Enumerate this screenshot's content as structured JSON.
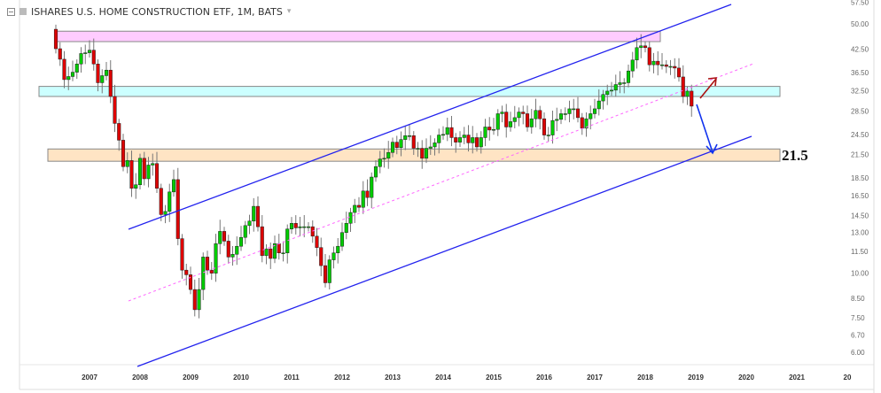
{
  "header": {
    "title": "ISHARES U.S. HOME CONSTRUCTION ETF, 1M, BATS",
    "caret": "▾"
  },
  "chart_data": {
    "type": "candlestick",
    "title": "ISHARES U.S. HOME CONSTRUCTION ETF, 1M, BATS",
    "interval": "1M",
    "start_month": "2006-05",
    "first_open": 48.3,
    "closes": [
      42.6,
      39.8,
      34.9,
      35.6,
      36.6,
      38.6,
      41.3,
      41.5,
      42.2,
      38.6,
      34.2,
      35.8,
      37.1,
      31.3,
      26.3,
      23.6,
      19.9,
      20.7,
      17.3,
      17.7,
      21.0,
      18.4,
      20.1,
      20.3,
      17.3,
      14.6,
      14.9,
      16.9,
      18.3,
      12.5,
      10.2,
      9.9,
      9.0,
      7.9,
      9.0,
      11.1,
      10.2,
      10.0,
      12.1,
      13.1,
      12.3,
      11.1,
      11.3,
      11.9,
      12.6,
      13.6,
      14.0,
      15.4,
      13.5,
      11.2,
      11.7,
      11.0,
      12.1,
      11.4,
      11.4,
      13.3,
      13.8,
      13.4,
      13.5,
      13.5,
      13.5,
      12.7,
      11.8,
      10.5,
      9.4,
      10.9,
      11.4,
      11.9,
      13.0,
      13.8,
      14.8,
      15.5,
      15.3,
      17.0,
      16.3,
      18.6,
      19.9,
      20.9,
      21.0,
      21.8,
      23.3,
      22.5,
      23.7,
      24.3,
      24.3,
      22.4,
      22.4,
      21.0,
      22.4,
      22.6,
      23.2,
      24.4,
      24.5,
      25.6,
      24.0,
      23.3,
      24.0,
      24.4,
      23.2,
      24.0,
      22.6,
      24.0,
      25.7,
      25.2,
      25.3,
      28.0,
      28.3,
      25.7,
      26.6,
      27.3,
      28.3,
      28.0,
      25.7,
      27.1,
      28.6,
      27.1,
      24.4,
      24.4,
      26.8,
      27.0,
      28.0,
      28.0,
      28.9,
      28.9,
      27.3,
      25.5,
      27.1,
      28.0,
      28.9,
      30.4,
      31.7,
      32.4,
      32.6,
      33.8,
      34.2,
      34.2,
      36.9,
      39.6,
      42.9,
      43.4,
      42.9,
      38.4,
      39.3,
      38.4,
      38.4,
      38.0,
      38.0,
      37.6,
      35.5,
      31.3,
      32.4,
      29.4
    ],
    "y_scale": "log",
    "ylim": [
      5.6,
      58
    ],
    "y_ticks": [
      "57.50",
      "50.00",
      "42.50",
      "36.50",
      "32.50",
      "28.50",
      "24.50",
      "21.50",
      "18.50",
      "16.50",
      "14.50",
      "13.00",
      "11.50",
      "10.00",
      "8.50",
      "7.50",
      "6.70",
      "6.00"
    ],
    "x_ticks": [
      {
        "label": "2007",
        "month_index": 8
      },
      {
        "label": "2008",
        "month_index": 20
      },
      {
        "label": "2009",
        "month_index": 32
      },
      {
        "label": "2010",
        "month_index": 44
      },
      {
        "label": "2011",
        "month_index": 56
      },
      {
        "label": "2012",
        "month_index": 68
      },
      {
        "label": "2013",
        "month_index": 80
      },
      {
        "label": "2014",
        "month_index": 92
      },
      {
        "label": "2015",
        "month_index": 104
      },
      {
        "label": "2016",
        "month_index": 116
      },
      {
        "label": "2017",
        "month_index": 128
      },
      {
        "label": "2018",
        "month_index": 140
      },
      {
        "label": "2019",
        "month_index": 152
      },
      {
        "label": "2020",
        "month_index": 164
      },
      {
        "label": "2021",
        "month_index": 176
      },
      {
        "label": "20",
        "month_index": 188
      }
    ],
    "zones": [
      {
        "name": "resistance-zone-top",
        "low": 44.6,
        "high": 47.7,
        "color": "#ffccff"
      },
      {
        "name": "resistance-zone-mid",
        "low": 31.3,
        "high": 33.4,
        "color": "#ccffff"
      },
      {
        "name": "support-zone",
        "low": 20.6,
        "high": 22.3,
        "color": "#ffe4c4"
      }
    ],
    "annotation_label": "21.5",
    "colors": {
      "up": "#00cc00",
      "down": "#dd0000",
      "wick": "#777777",
      "channel": "#2222ee",
      "midline": "#ff66ff",
      "arrow_up": "#aa1111",
      "arrow_down": "#1133ee"
    }
  }
}
